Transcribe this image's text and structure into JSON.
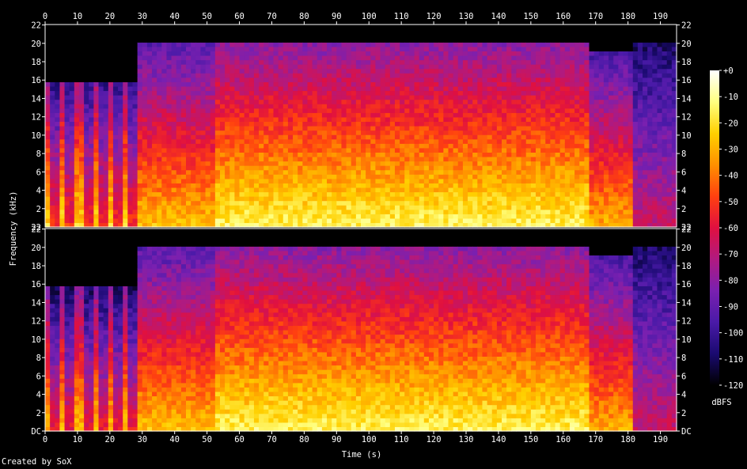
{
  "chart_data": {
    "type": "heatmap",
    "xlabel": "Time (s)",
    "ylabel": "Frequency (kHz)",
    "colorbar_label": "dBFS",
    "channels": 2,
    "x_ticks": [
      0,
      10,
      20,
      30,
      40,
      50,
      60,
      70,
      80,
      90,
      100,
      110,
      120,
      130,
      140,
      150,
      160,
      170,
      180,
      190
    ],
    "x_range": [
      0,
      195
    ],
    "y_tick_labels": [
      "DC",
      "2",
      "4",
      "6",
      "8",
      "10",
      "12",
      "14",
      "16",
      "18",
      "20",
      "22"
    ],
    "y_range_khz": [
      0,
      22.05
    ],
    "colorbar_ticks": [
      "+0",
      "-10",
      "-20",
      "-30",
      "-40",
      "-50",
      "-60",
      "-70",
      "-80",
      "-90",
      "-100",
      "-110",
      "-120"
    ],
    "colorbar_range_db": [
      -120,
      0
    ],
    "colormap_stops": [
      "#ffffff",
      "#ffff80",
      "#ffd000",
      "#ff9000",
      "#ff4010",
      "#e01040",
      "#b01a80",
      "#7a20b0",
      "#4a1aa8",
      "#1a0a70",
      "#000000"
    ],
    "segments": [
      {
        "t_start": 0,
        "t_end": 29,
        "bandwidth_khz": 16,
        "level": "pulsed"
      },
      {
        "t_start": 29,
        "t_end": 53,
        "bandwidth_khz": 20,
        "level": "medium"
      },
      {
        "t_start": 53,
        "t_end": 168,
        "bandwidth_khz": 20,
        "level": "loud"
      },
      {
        "t_start": 168,
        "t_end": 182,
        "bandwidth_khz": 19,
        "level": "fading"
      },
      {
        "t_start": 182,
        "t_end": 195,
        "bandwidth_khz": 20,
        "level": "quiet"
      }
    ]
  },
  "footer": {
    "credit": "Created by SoX"
  }
}
